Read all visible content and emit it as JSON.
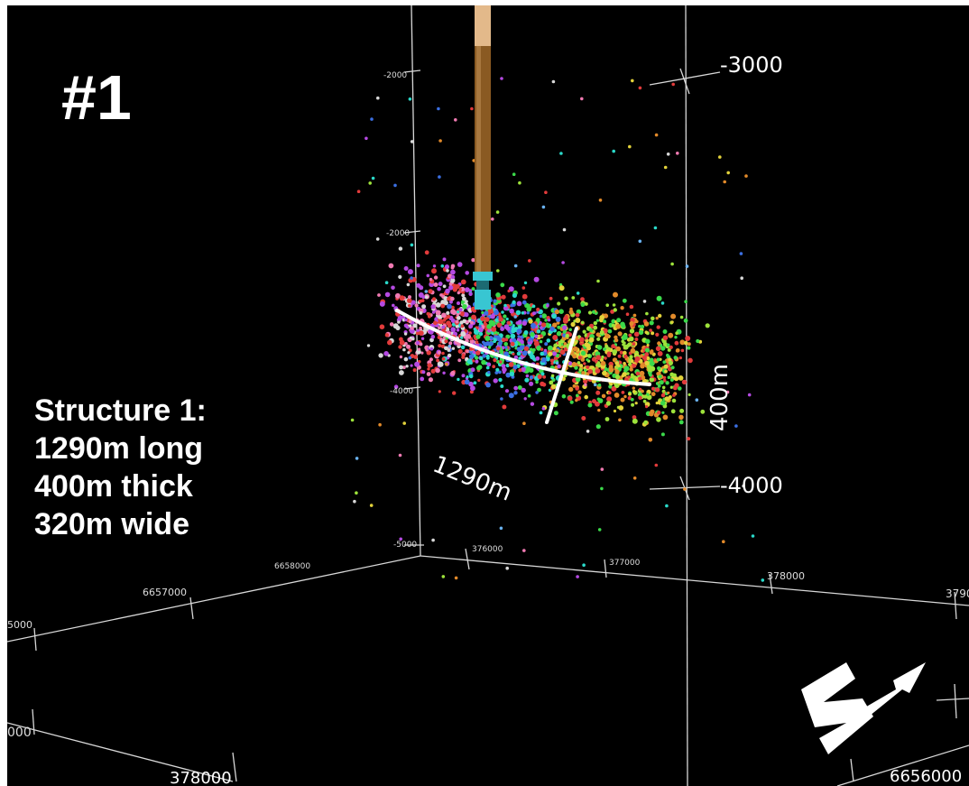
{
  "panel_label": "#1",
  "structure": {
    "title": "Structure 1:",
    "length": "1290m long",
    "thickness": "400m thick",
    "width": "320m wide"
  },
  "annotations": {
    "length_dim": "1290m",
    "thickness_dim": "400m"
  },
  "depth_axis": {
    "major_top": "-3000",
    "major_bottom": "-4000",
    "minor": [
      "-2000",
      "-2000",
      "-4000",
      "-5000"
    ]
  },
  "easting_ticks": [
    "376000",
    "377000",
    "378000",
    "3790",
    "378000"
  ],
  "northing_ticks": [
    "6658000",
    "6657000",
    "6656000",
    "5000",
    "000"
  ],
  "colors": {
    "background": "#000000",
    "grid": "#d8d8d8",
    "well_upper": "#e3b98a",
    "well_lower": "#8a5a22",
    "well_tip": "#38c6d2",
    "annotation": "#ffffff"
  },
  "icons": [
    "north-arrow-icon"
  ]
}
